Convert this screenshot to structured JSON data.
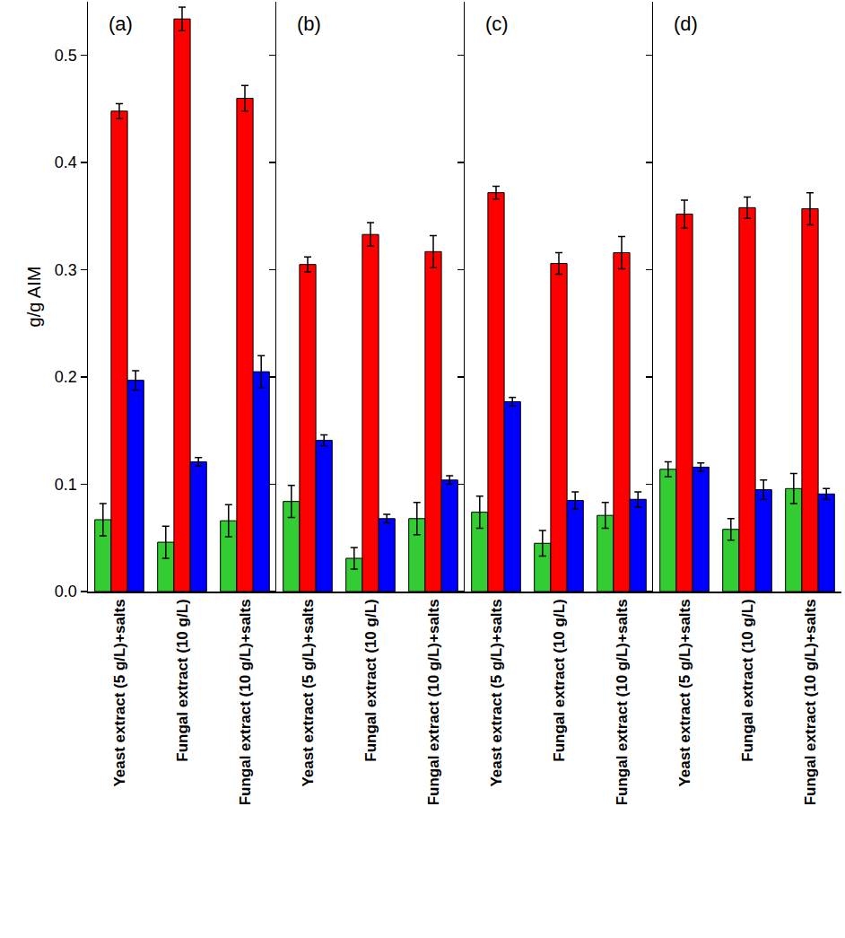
{
  "chart_data": [
    {
      "type": "bar",
      "title": "(a)",
      "y_label": "g/g AIM",
      "categories": [
        "Yeast extract (5 g/L)+salts",
        "Fungal extract (10 g/L)",
        "Fungal extract (10 g/L)+salts"
      ],
      "series": [
        {
          "color": "#33cc33",
          "values": [
            0.067,
            0.046,
            0.066
          ],
          "errors": [
            0.015,
            0.015,
            0.015
          ]
        },
        {
          "color": "#ff0000",
          "values": [
            0.448,
            0.534,
            0.46
          ],
          "errors": [
            0.007,
            0.011,
            0.012
          ]
        },
        {
          "color": "#0000ff",
          "values": [
            0.197,
            0.121,
            0.205
          ],
          "errors": [
            0.009,
            0.004,
            0.015
          ]
        }
      ],
      "ylim": [
        0,
        0.55
      ],
      "yticks": [
        {
          "value": 0,
          "label": "0.0"
        },
        0.1,
        0.2,
        0.3,
        0.4,
        0.5
      ]
    },
    {
      "type": "bar",
      "title": "(b)",
      "categories": [
        "Yeast extract (5 g/L)+salts",
        "Fungal extract (10 g/L)",
        "Fungal extract (10 g/L)+salts"
      ],
      "series": [
        {
          "color": "#33cc33",
          "values": [
            0.084,
            0.031,
            0.068
          ],
          "errors": [
            0.015,
            0.01,
            0.015
          ]
        },
        {
          "color": "#ff0000",
          "values": [
            0.305,
            0.333,
            0.317
          ],
          "errors": [
            0.007,
            0.011,
            0.015
          ]
        },
        {
          "color": "#0000ff",
          "values": [
            0.141,
            0.068,
            0.104
          ],
          "errors": [
            0.005,
            0.004,
            0.004
          ]
        }
      ],
      "ylim": [
        0,
        0.55
      ],
      "yticks": [
        {
          "value": 0,
          "label": "0.0"
        },
        0.1,
        0.2,
        0.3,
        0.4,
        0.5
      ],
      "tick_labels": "x"
    },
    {
      "type": "bar",
      "title": "(c)",
      "categories": [
        "Yeast extract (5 g/L)+salts",
        "Fungal extract (10 g/L)",
        "Fungal extract (10 g/L)+salts"
      ],
      "series": [
        {
          "color": "#33cc33",
          "values": [
            0.074,
            0.045,
            0.071
          ],
          "errors": [
            0.015,
            0.012,
            0.012
          ]
        },
        {
          "color": "#ff0000",
          "values": [
            0.372,
            0.306,
            0.316
          ],
          "errors": [
            0.006,
            0.01,
            0.015
          ]
        },
        {
          "color": "#0000ff",
          "values": [
            0.177,
            0.085,
            0.086
          ],
          "errors": [
            0.004,
            0.008,
            0.007
          ]
        }
      ],
      "ylim": [
        0,
        0.55
      ],
      "yticks": [
        {
          "value": 0,
          "label": "0.0"
        },
        0.1,
        0.2,
        0.3,
        0.4,
        0.5
      ],
      "tick_labels": "x"
    },
    {
      "type": "bar",
      "title": "(d)",
      "categories": [
        "Yeast extract (5 g/L)+salts",
        "Fungal extract (10 g/L)",
        "Fungal extract (10 g/L)+salts"
      ],
      "series": [
        {
          "color": "#33cc33",
          "values": [
            0.114,
            0.058,
            0.096
          ],
          "errors": [
            0.007,
            0.01,
            0.014
          ]
        },
        {
          "color": "#ff0000",
          "values": [
            0.352,
            0.358,
            0.357
          ],
          "errors": [
            0.013,
            0.01,
            0.015
          ]
        },
        {
          "color": "#0000ff",
          "values": [
            0.116,
            0.095,
            0.091
          ],
          "errors": [
            0.004,
            0.009,
            0.005
          ]
        }
      ],
      "ylim": [
        0,
        0.55
      ],
      "yticks": [
        {
          "value": 0,
          "label": "0.0"
        },
        0.1,
        0.2,
        0.3,
        0.4,
        0.5
      ],
      "tick_labels": "x"
    }
  ]
}
